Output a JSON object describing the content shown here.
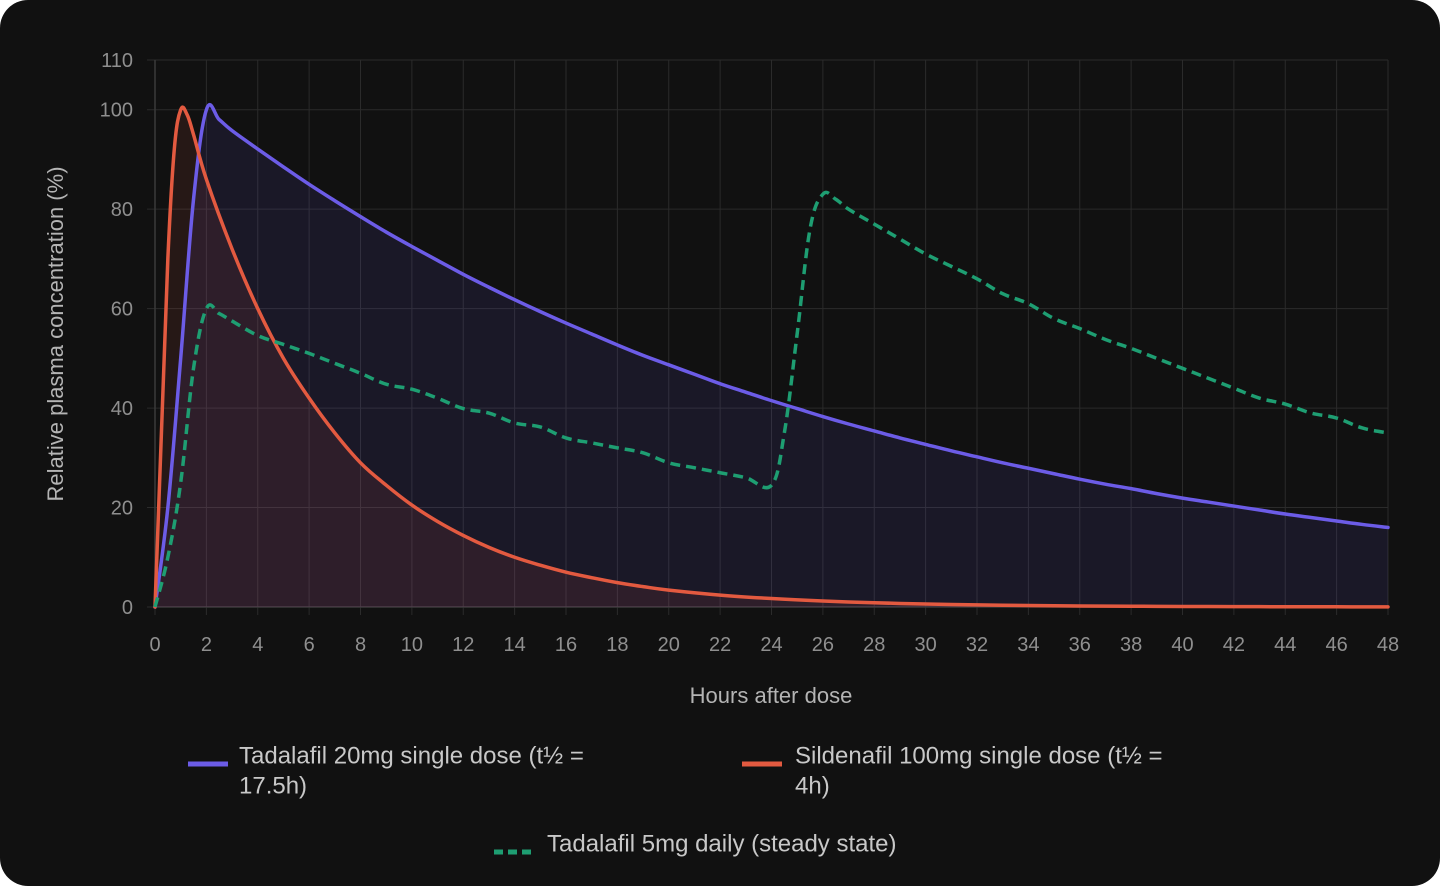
{
  "chart_data": {
    "type": "line",
    "title": "",
    "xlabel": "Hours after dose",
    "ylabel": "Relative plasma concentration (%)",
    "xlim": [
      0,
      48
    ],
    "ylim": [
      0,
      110
    ],
    "x_ticks": [
      "0",
      "2",
      "4",
      "6",
      "8",
      "10",
      "12",
      "14",
      "16",
      "18",
      "20",
      "22",
      "24",
      "26",
      "28",
      "30",
      "32",
      "34",
      "36",
      "38",
      "40",
      "42",
      "44",
      "46",
      "48"
    ],
    "y_ticks": [
      "0",
      "20",
      "40",
      "60",
      "80",
      "100",
      "110"
    ],
    "grid": true,
    "legend_position": "bottom",
    "series": [
      {
        "name": "Tadalafil 20mg single dose (t½ = 17.5h)",
        "legend_lines": [
          "Tadalafil 20mg single dose (t½ =",
          "17.5h)"
        ],
        "color": "#6c5ce7",
        "fill": "rgba(108,92,231,0.10)",
        "dash": "solid",
        "points": [
          [
            0,
            0
          ],
          [
            0.5,
            20
          ],
          [
            1,
            50
          ],
          [
            1.5,
            82
          ],
          [
            2,
            100
          ],
          [
            2.5,
            98
          ],
          [
            3,
            95.8
          ],
          [
            4,
            92.1
          ],
          [
            5,
            88.5
          ],
          [
            6,
            85
          ],
          [
            7,
            81.7
          ],
          [
            8,
            78.5
          ],
          [
            9,
            75.4
          ],
          [
            10,
            72.5
          ],
          [
            11,
            69.7
          ],
          [
            12,
            66.9
          ],
          [
            13,
            64.3
          ],
          [
            14,
            61.8
          ],
          [
            15,
            59.4
          ],
          [
            16,
            57.1
          ],
          [
            17,
            54.9
          ],
          [
            18,
            52.7
          ],
          [
            19,
            50.6
          ],
          [
            20,
            48.7
          ],
          [
            21,
            46.8
          ],
          [
            22,
            44.9
          ],
          [
            23,
            43.2
          ],
          [
            24,
            41.5
          ],
          [
            25,
            39.9
          ],
          [
            26,
            38.3
          ],
          [
            27,
            36.8
          ],
          [
            28,
            35.4
          ],
          [
            29,
            34
          ],
          [
            30,
            32.7
          ],
          [
            31,
            31.4
          ],
          [
            32,
            30.2
          ],
          [
            33,
            29
          ],
          [
            34,
            27.9
          ],
          [
            35,
            26.8
          ],
          [
            36,
            25.7
          ],
          [
            37,
            24.7
          ],
          [
            38,
            23.8
          ],
          [
            39,
            22.8
          ],
          [
            40,
            21.9
          ],
          [
            41,
            21.1
          ],
          [
            42,
            20.3
          ],
          [
            43,
            19.5
          ],
          [
            44,
            18.7
          ],
          [
            45,
            18
          ],
          [
            46,
            17.3
          ],
          [
            47,
            16.6
          ],
          [
            48,
            16
          ]
        ]
      },
      {
        "name": "Sildenafil 100mg single dose (t½ = 4h)",
        "legend_lines": [
          "Sildenafil 100mg single dose (t½ =",
          "4h)"
        ],
        "color": "#e35a40",
        "fill": "rgba(227,90,64,0.10)",
        "dash": "solid",
        "points": [
          [
            0,
            0
          ],
          [
            0.25,
            35
          ],
          [
            0.5,
            70
          ],
          [
            0.75,
            92
          ],
          [
            1,
            100
          ],
          [
            1.25,
            99
          ],
          [
            1.5,
            95
          ],
          [
            2,
            86
          ],
          [
            3,
            72
          ],
          [
            4,
            60
          ],
          [
            5,
            50
          ],
          [
            6,
            42
          ],
          [
            7,
            35
          ],
          [
            8,
            29
          ],
          [
            9,
            24.5
          ],
          [
            10,
            20.5
          ],
          [
            11,
            17.2
          ],
          [
            12,
            14.4
          ],
          [
            13,
            12
          ],
          [
            14,
            10
          ],
          [
            15,
            8.4
          ],
          [
            16,
            7
          ],
          [
            17,
            5.9
          ],
          [
            18,
            4.9
          ],
          [
            19,
            4.1
          ],
          [
            20,
            3.4
          ],
          [
            22,
            2.4
          ],
          [
            24,
            1.7
          ],
          [
            26,
            1.2
          ],
          [
            28,
            0.85
          ],
          [
            30,
            0.6
          ],
          [
            32,
            0.42
          ],
          [
            34,
            0.3
          ],
          [
            36,
            0.21
          ],
          [
            38,
            0.15
          ],
          [
            40,
            0.11
          ],
          [
            42,
            0.08
          ],
          [
            44,
            0.05
          ],
          [
            46,
            0.04
          ],
          [
            48,
            0.03
          ]
        ]
      },
      {
        "name": "Tadalafil 5mg daily (steady state)",
        "legend_lines": [
          "Tadalafil 5mg daily (steady state)"
        ],
        "color": "#1e9e72",
        "fill": "none",
        "dash": "dashed",
        "points": [
          [
            0,
            0
          ],
          [
            0.5,
            10
          ],
          [
            1,
            25
          ],
          [
            1.5,
            48
          ],
          [
            2,
            60
          ],
          [
            2.5,
            59
          ],
          [
            3,
            57.5
          ],
          [
            4,
            54.6
          ],
          [
            5,
            52.8
          ],
          [
            6,
            51
          ],
          [
            7,
            49
          ],
          [
            8,
            47
          ],
          [
            9,
            44.8
          ],
          [
            10,
            43.8
          ],
          [
            11,
            42
          ],
          [
            12,
            39.9
          ],
          [
            13,
            39
          ],
          [
            14,
            37
          ],
          [
            15,
            36.2
          ],
          [
            16,
            34
          ],
          [
            17,
            33
          ],
          [
            18,
            32
          ],
          [
            19,
            31
          ],
          [
            20,
            29
          ],
          [
            21,
            28
          ],
          [
            22,
            27
          ],
          [
            23,
            26
          ],
          [
            24,
            24.5
          ],
          [
            24.5,
            35
          ],
          [
            25,
            55
          ],
          [
            25.5,
            76
          ],
          [
            26,
            83
          ],
          [
            26.5,
            82
          ],
          [
            27,
            80
          ],
          [
            28,
            77
          ],
          [
            29,
            74
          ],
          [
            30,
            71
          ],
          [
            31,
            68.5
          ],
          [
            32,
            66
          ],
          [
            33,
            63
          ],
          [
            34,
            61
          ],
          [
            35,
            58
          ],
          [
            36,
            56
          ],
          [
            37,
            53.8
          ],
          [
            38,
            52
          ],
          [
            39,
            50
          ],
          [
            40,
            48
          ],
          [
            41,
            46
          ],
          [
            42,
            44
          ],
          [
            43,
            42
          ],
          [
            44,
            40.8
          ],
          [
            45,
            39
          ],
          [
            46,
            38
          ],
          [
            47,
            36
          ],
          [
            48,
            35
          ]
        ]
      }
    ]
  }
}
